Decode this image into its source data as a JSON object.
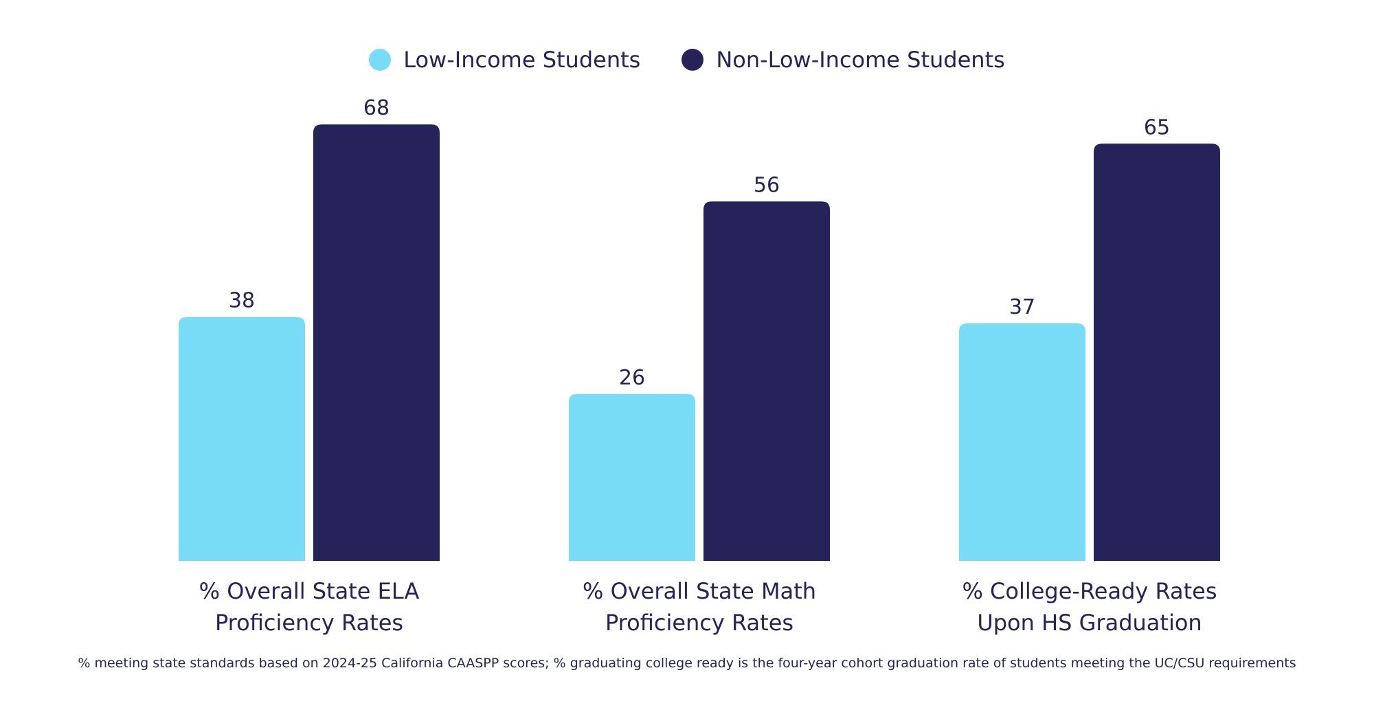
{
  "chart_data": {
    "type": "bar",
    "title": "",
    "xlabel": "",
    "ylabel": "",
    "ylim": [
      0,
      72
    ],
    "grid": false,
    "legend_position": "top-center",
    "categories": [
      [
        "% Overall State ELA",
        "Proficiency Rates"
      ],
      [
        "% Overall State Math",
        "Proficiency Rates"
      ],
      [
        "% College-Ready Rates",
        "Upon HS Graduation"
      ]
    ],
    "series": [
      {
        "name": "Low-Income Students",
        "color": "#78dcf7",
        "values": [
          38,
          26,
          37
        ]
      },
      {
        "name": "Non-Low-Income Students",
        "color": "#25235a",
        "values": [
          68,
          56,
          65
        ]
      }
    ],
    "footnote": "% meeting state standards based on 2024-25 California CAASPP scores; % graduating college ready is the four-year cohort graduation rate of students meeting the UC/CSU requirements"
  },
  "colors": {
    "text": "#25235a",
    "low_income": "#78dcf7",
    "non_low_income": "#25235a"
  }
}
